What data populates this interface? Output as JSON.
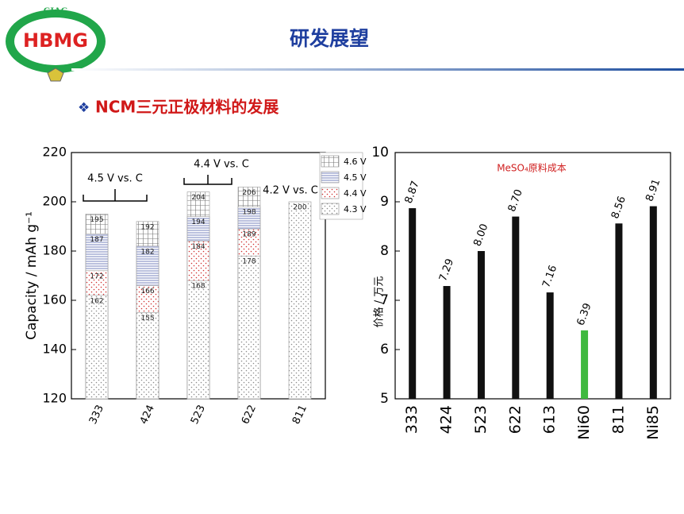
{
  "header": {
    "logo_top": "CIAC",
    "logo_main": "HBMG",
    "title": "研发展望",
    "bullet": "❖",
    "subtitle": "NCM三元正极材料的发展"
  },
  "chart_data": [
    {
      "type": "overlaid-bar",
      "ylabel": "Capacity / mAh g⁻¹",
      "categories": [
        "333",
        "424",
        "523",
        "622",
        "811"
      ],
      "series": [
        {
          "name": "4.6 V",
          "color": "#777777",
          "values": [
            195,
            192,
            204,
            206,
            null
          ]
        },
        {
          "name": "4.5 V",
          "color": "#4a5aa8",
          "values": [
            187,
            182,
            194,
            198,
            null
          ]
        },
        {
          "name": "4.4 V",
          "color": "#d03030",
          "values": [
            172,
            166,
            184,
            189,
            null
          ]
        },
        {
          "name": "4.3 V",
          "color": "#8a8a8a",
          "values": [
            162,
            155,
            168,
            178,
            200
          ]
        }
      ],
      "annotations": [
        "4.5 V vs. C",
        "4.4 V vs. C",
        "4.2 V vs. C"
      ],
      "ylim": [
        120,
        220
      ],
      "yticks": [
        120,
        140,
        160,
        180,
        200,
        220
      ],
      "legend": "top-right"
    },
    {
      "type": "bar",
      "title": "MeSO₄原料成本",
      "ylabel": "价格 / 万元",
      "categories": [
        "333",
        "424",
        "523",
        "622",
        "613",
        "Ni60",
        "811",
        "Ni85"
      ],
      "values": [
        8.87,
        7.29,
        8.0,
        8.7,
        7.16,
        6.39,
        8.56,
        8.91
      ],
      "value_labels": [
        "8.87",
        "7.29",
        "8.00",
        "8.70",
        "7.16",
        "6.39",
        "8.56",
        "8.91"
      ],
      "colors": [
        "#111111",
        "#111111",
        "#111111",
        "#111111",
        "#111111",
        "#3fb93f",
        "#111111",
        "#111111"
      ],
      "ylim": [
        5,
        10
      ],
      "yticks": [
        5,
        6,
        7,
        8,
        9,
        10
      ]
    }
  ]
}
